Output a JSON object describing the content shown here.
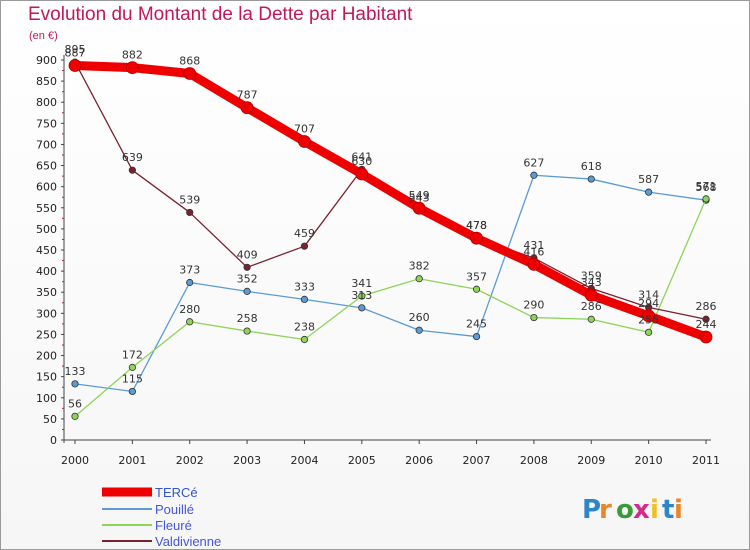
{
  "header": {
    "title": "Evolution du Montant de la Dette par Habitant",
    "unit": "(en €)"
  },
  "brand": {
    "letters": [
      "P",
      "r",
      "o",
      "x",
      "i",
      "t",
      "i"
    ],
    "colors": [
      "#2e86c8",
      "#e8862a",
      "#3a9a3a",
      "#d62a8a",
      "#f0c020",
      "#2e86c8",
      "#e8862a"
    ]
  },
  "chart_data": {
    "type": "line",
    "title": "Evolution du Montant de la Dette par Habitant",
    "ylabel": "(en €)",
    "xlabel": "",
    "x": [
      "2000",
      "2001",
      "2002",
      "2003",
      "2004",
      "2005",
      "2006",
      "2007",
      "2008",
      "2009",
      "2010",
      "2011"
    ],
    "ylim": [
      0,
      900
    ],
    "yticks": [
      0,
      50,
      100,
      150,
      200,
      250,
      300,
      350,
      400,
      450,
      500,
      550,
      600,
      650,
      700,
      750,
      800,
      850,
      900
    ],
    "grid": false,
    "legend_position": "bottom-left",
    "series": [
      {
        "name": "TERCé",
        "color": "#ee0000",
        "values": [
          887,
          882,
          868,
          787,
          707,
          630,
          549,
          478,
          416,
          343,
          294,
          244
        ]
      },
      {
        "name": "Pouillé",
        "color": "#5b9bd5",
        "values": [
          133,
          115,
          373,
          352,
          333,
          313,
          260,
          245,
          627,
          618,
          587,
          568
        ]
      },
      {
        "name": "Fleuré",
        "color": "#8fd45a",
        "values": [
          56,
          172,
          280,
          258,
          238,
          341,
          382,
          357,
          290,
          286,
          255,
          571
        ]
      },
      {
        "name": "Valdivienne",
        "color": "#7a2230",
        "values": [
          895,
          639,
          539,
          409,
          459,
          641,
          543,
          478,
          431,
          359,
          314,
          286
        ]
      }
    ]
  }
}
